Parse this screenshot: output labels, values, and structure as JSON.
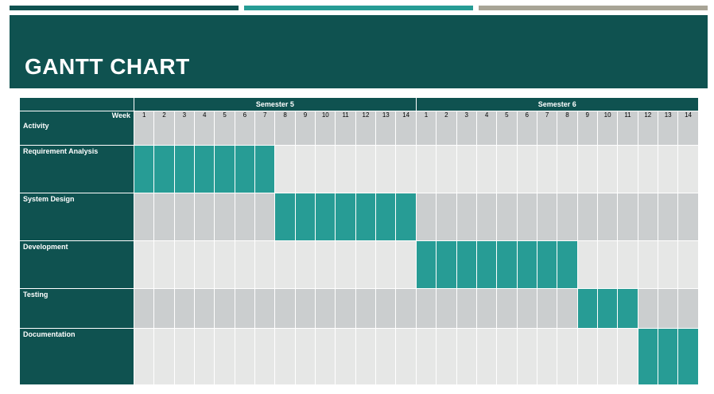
{
  "title": "GANTT CHART",
  "colors": {
    "header_dark": "#0f5250",
    "active": "#279c95",
    "row_light": "#e6e7e6",
    "row_dark": "#cbcecf",
    "accent_1": "#0f5250",
    "accent_2": "#279c95",
    "accent_3": "#a8a496"
  },
  "header": {
    "week_label": "Week",
    "activity_label": "Activity"
  },
  "semesters": [
    {
      "name": "Semester 5",
      "weeks": [
        "1",
        "2",
        "3",
        "4",
        "5",
        "6",
        "7",
        "8",
        "9",
        "10",
        "11",
        "12",
        "13",
        "14"
      ]
    },
    {
      "name": "Semester 6",
      "weeks": [
        "1",
        "2",
        "3",
        "4",
        "5",
        "6",
        "7",
        "8",
        "9",
        "10",
        "11",
        "12",
        "13",
        "14"
      ]
    }
  ],
  "tasks": [
    {
      "name": "Requirement Analysis",
      "start_week": 1,
      "end_week": 7
    },
    {
      "name": "System Design",
      "start_week": 8,
      "end_week": 14
    },
    {
      "name": "Development",
      "start_week": 15,
      "end_week": 22
    },
    {
      "name": "Testing",
      "start_week": 23,
      "end_week": 25
    },
    {
      "name": "Documentation",
      "start_week": 26,
      "end_week": 28
    }
  ]
}
